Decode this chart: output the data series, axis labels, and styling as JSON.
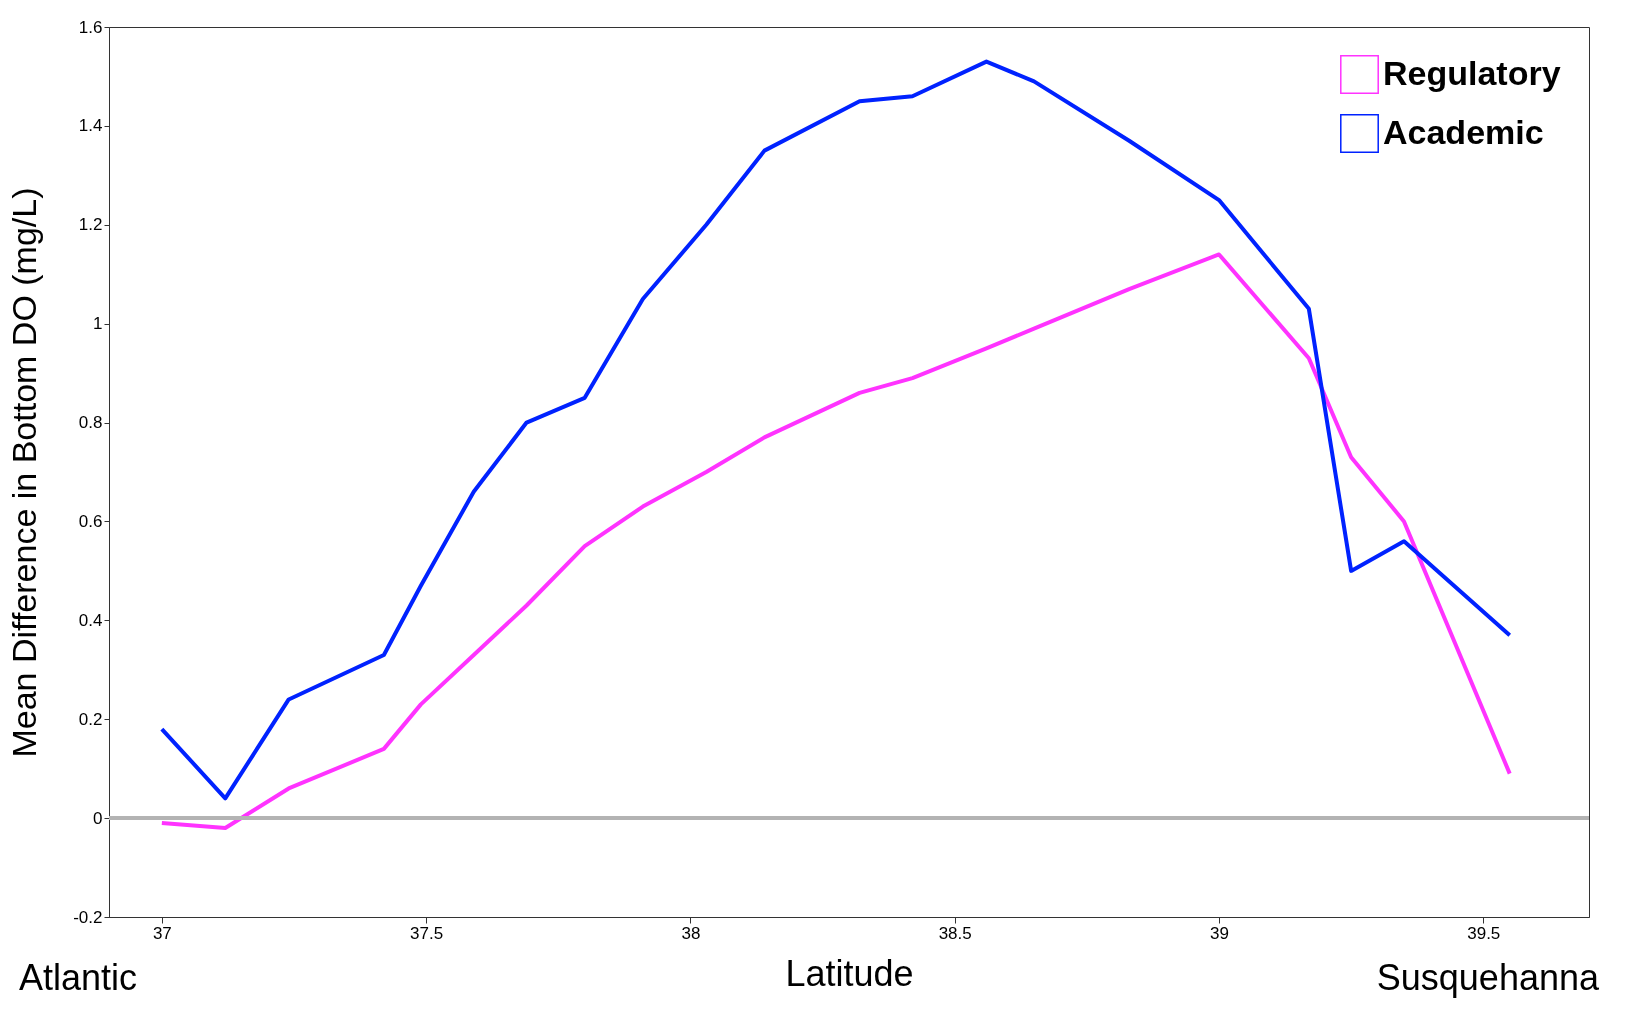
{
  "chart_data": {
    "type": "line",
    "xlabel": "Latitude",
    "ylabel": "Mean Difference in Bottom DO (mg/L)",
    "x": [
      37.0,
      37.12,
      37.24,
      37.42,
      37.49,
      37.59,
      37.69,
      37.8,
      37.91,
      38.03,
      38.14,
      38.32,
      38.42,
      38.56,
      38.65,
      38.83,
      39.0,
      39.17,
      39.25,
      39.35,
      39.55
    ],
    "series": [
      {
        "name": "Regulatory",
        "color": "#ff33ff",
        "values": [
          -0.01,
          -0.02,
          0.06,
          0.14,
          0.23,
          0.33,
          0.43,
          0.55,
          0.63,
          0.7,
          0.77,
          0.86,
          0.89,
          0.95,
          0.99,
          1.07,
          1.14,
          0.93,
          0.73,
          0.6,
          0.09
        ]
      },
      {
        "name": "Academic",
        "color": "#0022ff",
        "values": [
          0.18,
          0.04,
          0.24,
          0.33,
          0.47,
          0.66,
          0.8,
          0.85,
          1.05,
          1.2,
          1.35,
          1.45,
          1.46,
          1.53,
          1.49,
          1.37,
          1.25,
          1.03,
          0.5,
          0.56,
          0.37
        ]
      }
    ],
    "xlim": [
      36.9,
      39.7
    ],
    "xticks": [
      37,
      37.5,
      38,
      38.5,
      39,
      39.5
    ],
    "ylim": [
      -0.2,
      1.6
    ],
    "yticks": [
      -0.2,
      0,
      0.2,
      0.4,
      0.6,
      0.8,
      1,
      1.2,
      1.4,
      1.6
    ],
    "ref_lines": [
      {
        "axis": "y",
        "value": 0,
        "color": "#b3b3b3"
      }
    ],
    "annotations": [
      "Atlantic",
      "Susquehanna"
    ],
    "legend": "top right",
    "grid": false,
    "marker": "none",
    "line_style": "solid"
  }
}
